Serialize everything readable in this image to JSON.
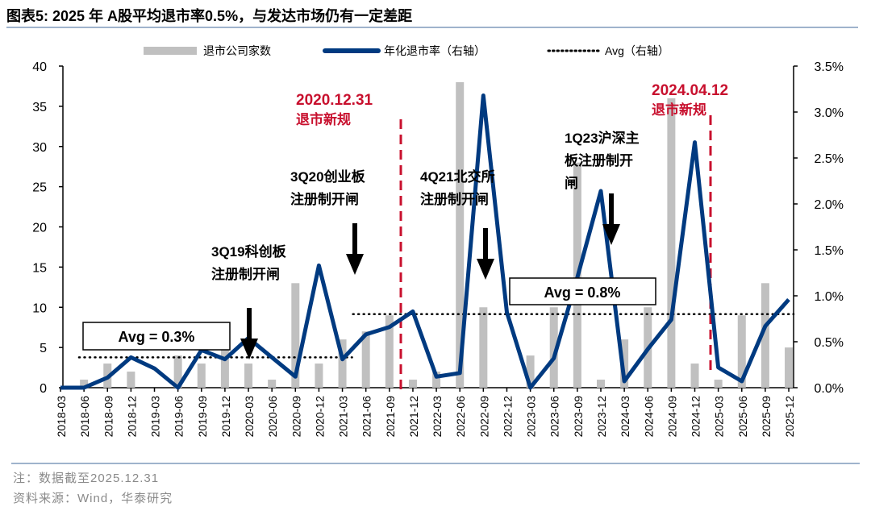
{
  "title": "图表5:  2025 年 A股平均退市率0.5%，与发达市场仍有一定差距",
  "notes": {
    "note": "注：数据截至2025.12.31",
    "source": "资料来源：Wind，华泰研究"
  },
  "annotations": {
    "rule1_date": "2020.12.31",
    "rule1_label": "退市新规",
    "rule2_date": "2024.04.12",
    "rule2_label": "退市新规",
    "star_line1": "3Q19科创板",
    "star_line2": "注册制开闸",
    "gem_line1": "3Q20创业板",
    "gem_line2": "注册制开闸",
    "bse_line1": "4Q21北交所",
    "bse_line2": "注册制开闸",
    "main_line1": "1Q23沪深主",
    "main_line2": "板注册制开",
    "main_line3": "闸",
    "avg1": "Avg = 0.3%",
    "avg2": "Avg = 0.8%"
  },
  "colors": {
    "bar": "#c0c0c0",
    "line": "#003a80",
    "rule": "#c8102e",
    "avg": "#000000"
  },
  "chart_data": {
    "type": "bar+line",
    "legend_position": "top",
    "categories": [
      "2018-03",
      "2018-06",
      "2018-09",
      "2018-12",
      "2019-03",
      "2019-06",
      "2019-09",
      "2019-12",
      "2020-03",
      "2020-06",
      "2020-09",
      "2020-12",
      "2021-03",
      "2021-06",
      "2021-09",
      "2021-12",
      "2022-03",
      "2022-06",
      "2022-09",
      "2022-12",
      "2023-03",
      "2023-06",
      "2023-09",
      "2023-12",
      "2024-03",
      "2024-06",
      "2024-09",
      "2024-12",
      "2025-03",
      "2025-06",
      "2025-09",
      "2025-12"
    ],
    "series": [
      {
        "name": "退市公司家数",
        "type": "bar",
        "axis": "left",
        "values": [
          0,
          1,
          3,
          2,
          0,
          4,
          3,
          5,
          3,
          1,
          13,
          3,
          6,
          7,
          9,
          1,
          2,
          38,
          10,
          0,
          4,
          10,
          28,
          1,
          6,
          10,
          36,
          3,
          1,
          9,
          13,
          5
        ]
      },
      {
        "name": "年化退市率（右轴）",
        "type": "line",
        "axis": "right",
        "values": [
          0,
          0,
          0.11,
          0.33,
          0.21,
          0,
          0.41,
          0.31,
          0.54,
          0.33,
          0.12,
          1.33,
          0.31,
          0.58,
          0.66,
          0.83,
          0.12,
          0.16,
          3.18,
          0.82,
          0,
          0.32,
          1.2,
          2.14,
          0.07,
          0.42,
          0.74,
          2.67,
          0.22,
          0.07,
          0.67,
          0.96
        ]
      },
      {
        "name": "Avg（右轴）",
        "type": "dotted",
        "axis": "right",
        "segments": [
          {
            "from": "2018-03",
            "to": "2021-03",
            "value": 0.33
          },
          {
            "from": "2021-06",
            "to": "2025-12",
            "value": 0.8
          }
        ]
      }
    ],
    "y_left": {
      "ticks": [
        "0",
        "5",
        "10",
        "15",
        "20",
        "25",
        "30",
        "35",
        "40"
      ],
      "range": [
        0,
        40
      ]
    },
    "y_right": {
      "ticks": [
        "0.0%",
        "0.5%",
        "1.0%",
        "1.5%",
        "2.0%",
        "2.5%",
        "3.0%",
        "3.5%"
      ],
      "range": [
        0,
        3.5
      ]
    },
    "vertical_rules": [
      "2020.12.31",
      "2024.04.12"
    ]
  }
}
